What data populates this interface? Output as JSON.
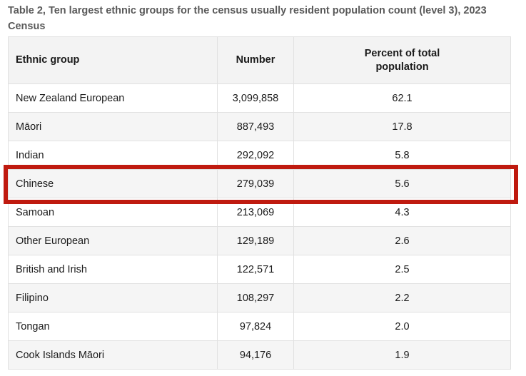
{
  "caption": "Table 2, Ten largest ethnic groups for the census usually resident population count (level 3), 2023 Census",
  "table": {
    "headers": {
      "ethnic_group": "Ethnic group",
      "number": "Number",
      "percent": "Percent of total population"
    },
    "rows": [
      {
        "ethnic_group": "New Zealand European",
        "number": "3,099,858",
        "percent": "62.1"
      },
      {
        "ethnic_group": "Māori",
        "number": "887,493",
        "percent": "17.8"
      },
      {
        "ethnic_group": "Indian",
        "number": "292,092",
        "percent": "5.8"
      },
      {
        "ethnic_group": "Chinese",
        "number": "279,039",
        "percent": "5.6"
      },
      {
        "ethnic_group": "Samoan",
        "number": "213,069",
        "percent": "4.3"
      },
      {
        "ethnic_group": "Other European",
        "number": "129,189",
        "percent": "2.6"
      },
      {
        "ethnic_group": "British and Irish",
        "number": "122,571",
        "percent": "2.5"
      },
      {
        "ethnic_group": "Filipino",
        "number": "108,297",
        "percent": "2.2"
      },
      {
        "ethnic_group": "Tongan",
        "number": "97,824",
        "percent": "2.0"
      },
      {
        "ethnic_group": "Cook Islands Māori",
        "number": "94,176",
        "percent": "1.9"
      }
    ],
    "highlighted_row": "Chinese"
  },
  "colors": {
    "highlight_border": "#bf1a0f",
    "header_background": "#f3f3f3",
    "caption_text": "#5a5a5a"
  }
}
